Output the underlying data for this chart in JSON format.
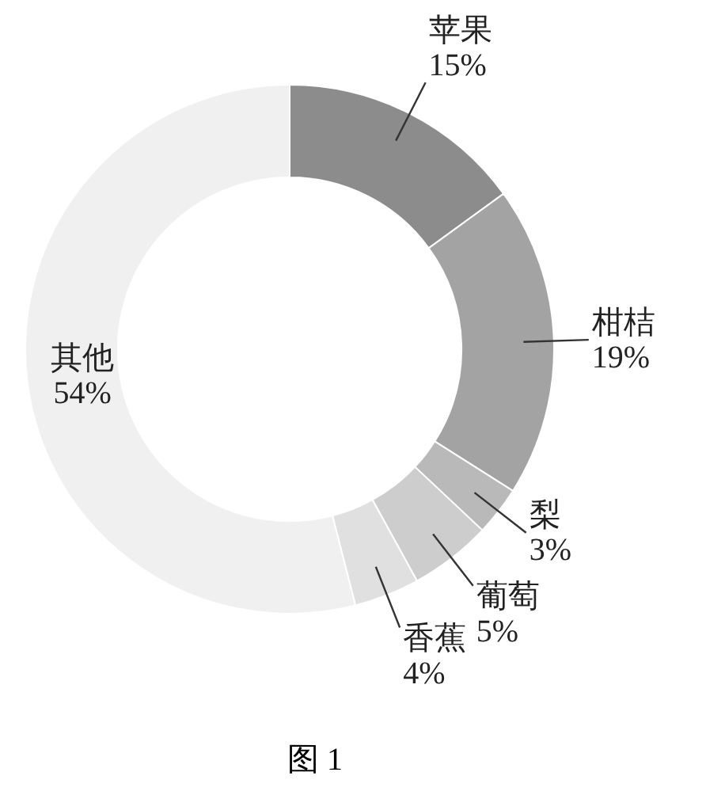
{
  "chart_data": {
    "type": "donut",
    "categories": [
      "苹果",
      "柑桔",
      "梨",
      "葡萄",
      "香蕉",
      "其他"
    ],
    "values": [
      15,
      19,
      3,
      5,
      4,
      54
    ],
    "colors": [
      "#8c8c8c",
      "#a3a3a3",
      "#b9b9b9",
      "#cdcdcd",
      "#e0e0e0",
      "#f0f0f0"
    ],
    "value_labels": [
      "15%",
      "19%",
      "3%",
      "5%",
      "4%",
      "54%"
    ],
    "legend": false,
    "annotations": [
      "图 1"
    ]
  }
}
